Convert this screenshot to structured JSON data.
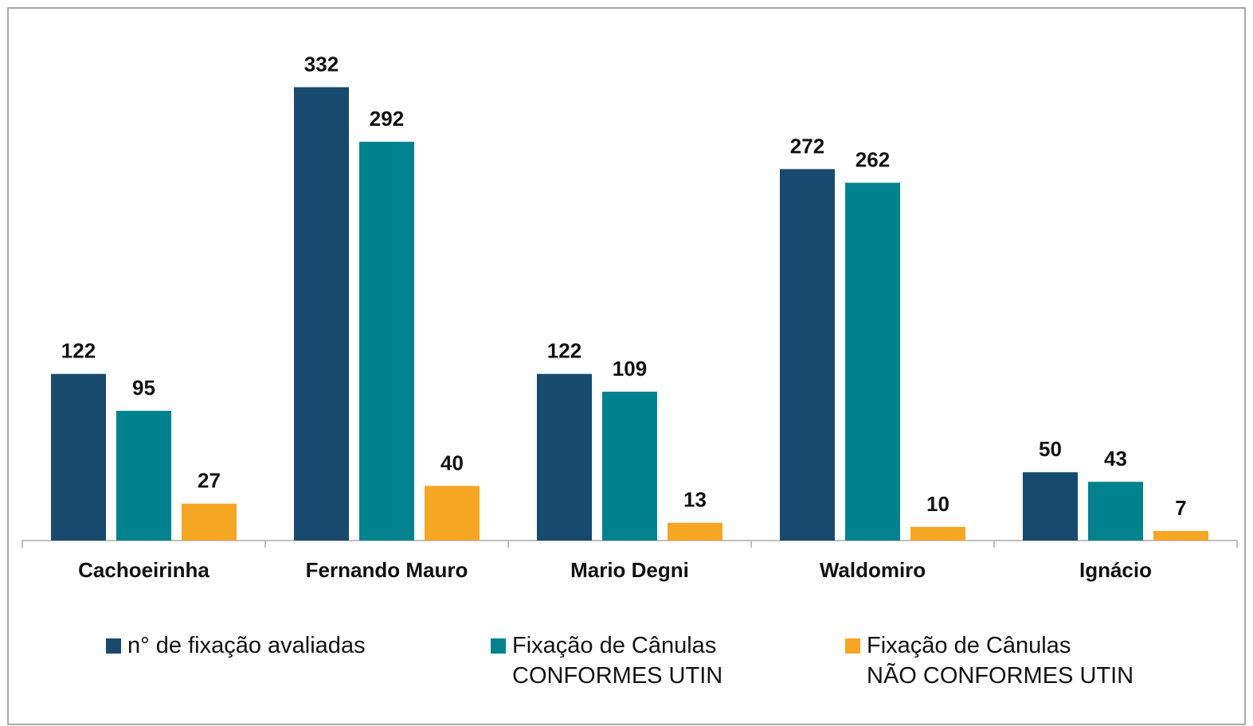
{
  "chart_data": {
    "type": "bar",
    "categories": [
      "Cachoeirinha",
      "Fernando Mauro",
      "Mario Degni",
      "Waldomiro",
      "Ignácio"
    ],
    "series": [
      {
        "name": "n° de fixação avaliadas",
        "color": "#174a6e",
        "values": [
          122,
          332,
          122,
          272,
          50
        ]
      },
      {
        "name": "Fixação de Cânulas\nCONFORMES UTIN",
        "color": "#00838f",
        "values": [
          95,
          292,
          109,
          262,
          43
        ]
      },
      {
        "name": "Fixação de Cânulas\nNÃO CONFORMES UTIN",
        "color": "#f5a623",
        "values": [
          27,
          40,
          13,
          10,
          7
        ]
      }
    ],
    "ylim": [
      0,
      390
    ]
  }
}
